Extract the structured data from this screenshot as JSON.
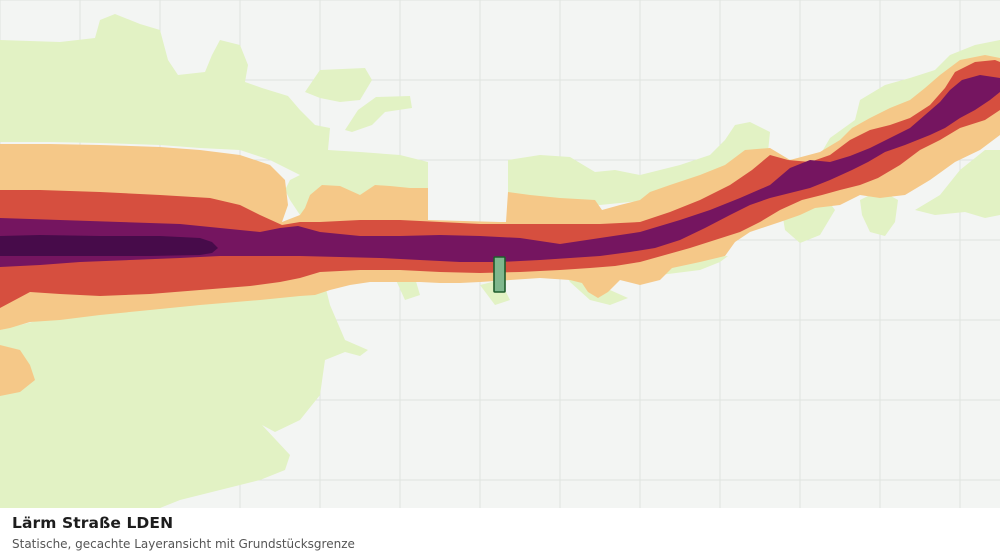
{
  "layer": {
    "title": "Lärm Straße LDEN",
    "subtitle": "Statische, gecachte Layeransicht mit Grundstücksgrenze"
  },
  "map": {
    "background_color": "#f3f5f3",
    "grid_color": "#dfe3df",
    "noise_bands": [
      {
        "name": "band-1",
        "color": "#e2f2c4"
      },
      {
        "name": "band-2",
        "color": "#f5c888"
      },
      {
        "name": "band-3",
        "color": "#d64f3f"
      },
      {
        "name": "band-4",
        "color": "#751560"
      },
      {
        "name": "band-5",
        "color": "#470b4a"
      }
    ],
    "parcel_boundary": {
      "fill": "#7fb78d",
      "stroke": "#1f5c2c"
    }
  }
}
